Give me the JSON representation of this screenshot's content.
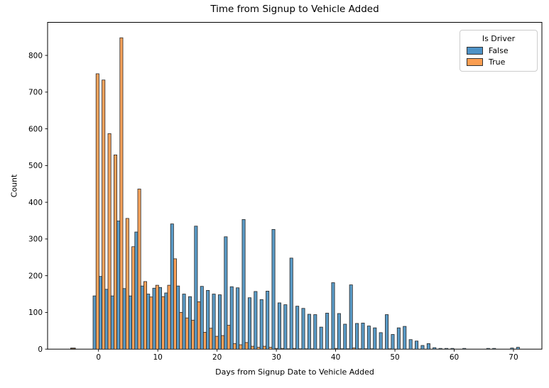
{
  "figure": {
    "title": "Time from Signup to Vehicle Added"
  },
  "axes": {
    "xlabel": "Days from Signup Date to Vehicle Added",
    "ylabel": "Count"
  },
  "legend": {
    "title": "Is Driver",
    "entries": [
      {
        "label": "False",
        "color": "#4e92c6"
      },
      {
        "label": "True",
        "color": "#fb9e51"
      }
    ]
  },
  "chart_data": {
    "type": "bar",
    "subtype": "histogram-dodged",
    "title": "Time from Signup to Vehicle Added",
    "xlabel": "Days from Signup Date to Vehicle Added",
    "ylabel": "Count",
    "legend_title": "Is Driver",
    "legend_position": "upper right",
    "grid": false,
    "background": "#ffffff",
    "bar_edge_color": "#262626",
    "xticks": [
      0,
      10,
      20,
      30,
      40,
      50,
      60,
      70
    ],
    "yticks": [
      0,
      100,
      200,
      300,
      400,
      500,
      600,
      700,
      800
    ],
    "xlim_days": [
      -8.6,
      74.8
    ],
    "ylim": [
      0,
      890
    ],
    "bins": {
      "start_day": -0.92,
      "width_days": 1.006
    },
    "x": [
      0,
      1,
      2,
      3,
      4,
      5,
      6,
      7,
      8,
      9,
      10,
      11,
      12,
      13,
      14,
      15,
      16,
      17,
      18,
      19,
      20,
      21,
      22,
      23,
      24,
      25,
      26,
      27,
      28,
      29,
      30,
      31,
      32,
      33,
      34,
      35,
      36,
      37,
      38,
      39,
      40,
      41,
      42,
      43,
      44,
      45,
      46,
      47,
      48,
      49,
      50,
      51,
      52,
      53,
      54,
      55,
      56,
      57,
      58,
      59,
      60,
      61,
      62,
      63,
      64,
      65,
      66,
      67,
      68,
      69,
      70,
      71
    ],
    "series": [
      {
        "name": "False",
        "color": "#5a9bc7",
        "values": [
          145,
          198,
          163,
          145,
          349,
          165,
          145,
          319,
          172,
          150,
          166,
          168,
          153,
          341,
          172,
          150,
          143,
          335,
          171,
          160,
          150,
          148,
          306,
          170,
          167,
          353,
          140,
          157,
          135,
          158,
          326,
          126,
          121,
          248,
          117,
          111,
          95,
          94,
          60,
          98,
          181,
          97,
          68,
          175,
          70,
          71,
          63,
          58,
          45,
          94,
          40,
          58,
          62,
          26,
          22,
          10,
          15,
          4,
          2,
          2,
          2,
          0,
          2,
          0,
          0,
          0,
          2,
          2,
          0,
          0,
          3,
          5
        ]
      },
      {
        "name": "True",
        "color": "#fba35b",
        "values": [
          750,
          733,
          587,
          529,
          848,
          356,
          279,
          436,
          184,
          142,
          174,
          143,
          174,
          246,
          100,
          85,
          79,
          129,
          46,
          57,
          35,
          37,
          65,
          15,
          12,
          18,
          8,
          5,
          8,
          5,
          2,
          2,
          1,
          2,
          1,
          1,
          1,
          0,
          0,
          0,
          2,
          1,
          1,
          3,
          1,
          1,
          1,
          0,
          0,
          1,
          0,
          0,
          0,
          0,
          0,
          0,
          0,
          0,
          0,
          0,
          0,
          0,
          0,
          0,
          0,
          0,
          0,
          0,
          0,
          0,
          0,
          0
        ]
      }
    ],
    "stray_bar": {
      "day_start": -4.7,
      "day_end": -3.9,
      "value": 3,
      "series": "True"
    }
  }
}
